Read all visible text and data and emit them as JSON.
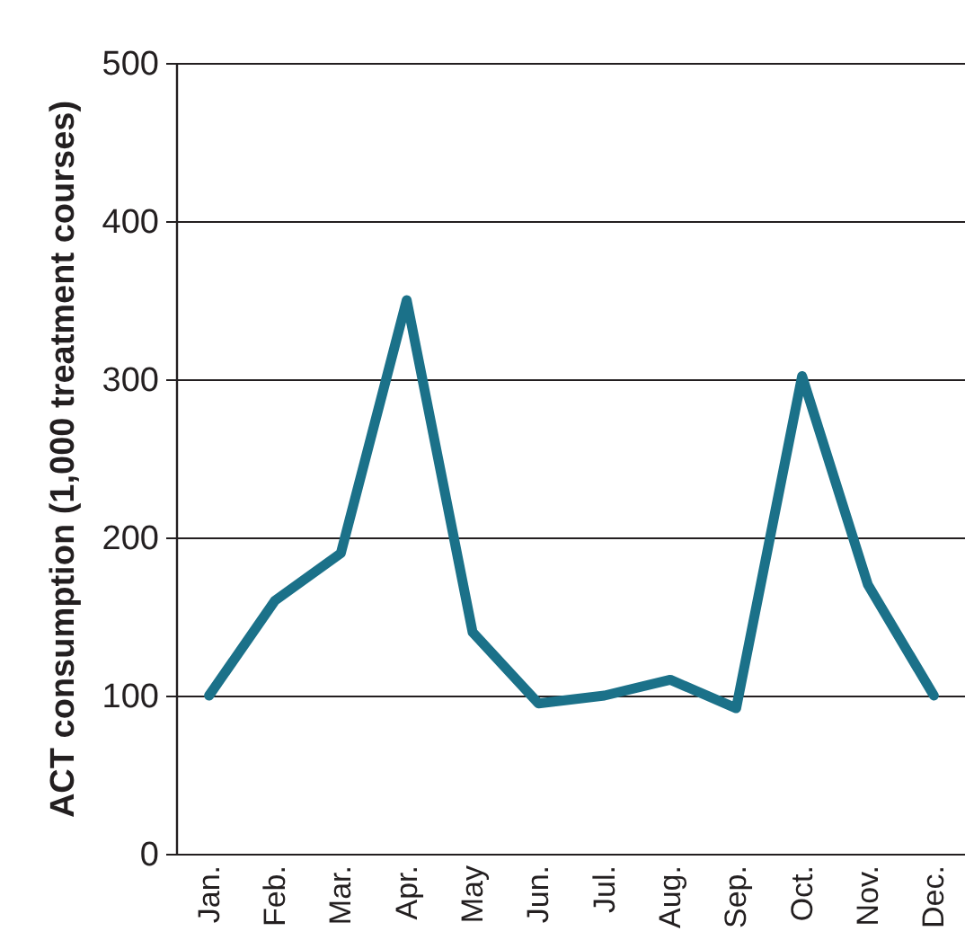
{
  "chart_data": {
    "type": "line",
    "ylabel": "ACT consumption (1,000 treatment courses)",
    "categories": [
      "Jan.",
      "Feb.",
      "Mar.",
      "Apr.",
      "May",
      "Jun.",
      "Jul.",
      "Aug.",
      "Sep.",
      "Oct.",
      "Nov.",
      "Dec."
    ],
    "series": [
      {
        "color": "#1b7189",
        "values": [
          100,
          160,
          190,
          350,
          140,
          95,
          100,
          110,
          92,
          302,
          170,
          100
        ]
      }
    ],
    "ylim": [
      0,
      500
    ],
    "yticks": [
      0,
      100,
      200,
      300,
      400,
      500
    ],
    "grid": "y",
    "marker": "none",
    "line_style": "solid"
  }
}
